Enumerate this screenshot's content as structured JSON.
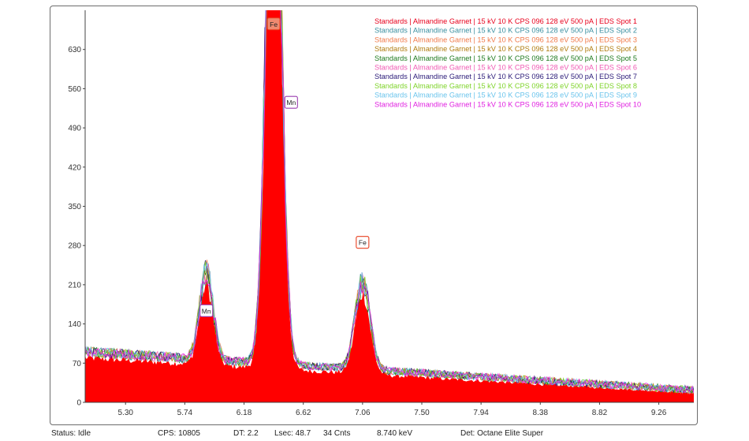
{
  "chart_data": {
    "type": "area",
    "yticks": [
      "0",
      "70",
      "140",
      "210",
      "280",
      "350",
      "420",
      "490",
      "560",
      "630"
    ],
    "ytick_values": [
      0,
      70,
      140,
      210,
      280,
      350,
      420,
      490,
      560,
      630
    ],
    "xticks": [
      "5.30",
      "5.74",
      "6.18",
      "6.62",
      "7.06",
      "7.50",
      "7.94",
      "8.38",
      "8.82",
      "9.26"
    ],
    "xtick_values": [
      5.3,
      5.74,
      6.18,
      6.62,
      7.06,
      7.5,
      7.94,
      8.38,
      8.82,
      9.26
    ],
    "xlim": [
      5.0,
      9.52
    ],
    "ylim": [
      0,
      700
    ],
    "grid": false,
    "legend_position": "top-right",
    "legend": [
      {
        "label": "Standards | Almandine Garnet | 15 kV 10 K CPS 096 128 eV 500 pA | EDS Spot 1",
        "color": "#e8001c"
      },
      {
        "label": "Standards | Almandine Garnet | 15 kV 10 K CPS 096 128 eV 500 pA | EDS Spot 2",
        "color": "#3a8fa0"
      },
      {
        "label": "Standards | Almandine Garnet | 15 kV 10 K CPS 096 128 eV 500 pA | EDS Spot 3",
        "color": "#f07a4a"
      },
      {
        "label": "Standards | Almandine Garnet | 15 kV 10 K CPS 096 128 eV 500 pA | EDS Spot 4",
        "color": "#b07d10"
      },
      {
        "label": "Standards | Almandine Garnet | 15 kV 10 K CPS 096 128 eV 500 pA | EDS Spot 5",
        "color": "#1e7a1e"
      },
      {
        "label": "Standards | Almandine Garnet | 15 kV 10 K CPS 096 128 eV 500 pA | EDS Spot 6",
        "color": "#f05ab4"
      },
      {
        "label": "Standards | Almandine Garnet | 15 kV 10 K CPS 096 128 eV 500 pA | EDS Spot 7",
        "color": "#2a1a78"
      },
      {
        "label": "Standards | Almandine Garnet | 15 kV 10 K CPS 096 128 eV 500 pA | EDS Spot 8",
        "color": "#7fd42a"
      },
      {
        "label": "Standards | Almandine Garnet | 15 kV 10 K CPS 096 128 eV 500 pA | EDS Spot 9",
        "color": "#6ac4ec"
      },
      {
        "label": "Standards | Almandine Garnet | 15 kV 10 K CPS 096 128 eV 500 pA | EDS Spot 10",
        "color": "#e020e0"
      }
    ],
    "fill_color": "#ff0000",
    "peaks": [
      {
        "element": "Mn",
        "energy": 5.9,
        "height": 155,
        "width": 0.05
      },
      {
        "element": "Fe",
        "energy": 6.4,
        "height": 1100,
        "width": 0.055
      },
      {
        "element": "Fe",
        "energy": 7.06,
        "height": 155,
        "width": 0.055
      }
    ],
    "background": {
      "start_energy": 5.0,
      "start_counts": 90,
      "end_energy": 9.52,
      "end_counts": 22
    },
    "peak_labels": [
      {
        "text": "Mn",
        "energy": 5.9,
        "counts": 163,
        "color": "#9b3fb0"
      },
      {
        "text": "Fe",
        "energy": 6.4,
        "counts": 675,
        "color": "#e84020",
        "filled": true
      },
      {
        "text": "Mn",
        "energy": 6.53,
        "counts": 535,
        "color": "#9b3fb0"
      },
      {
        "text": "Fe",
        "energy": 7.06,
        "counts": 285,
        "color": "#e84020"
      }
    ]
  },
  "status": {
    "status": "Status: Idle",
    "cps": "CPS: 10805",
    "dt": "DT: 2.2",
    "lsec": "Lsec: 48.7",
    "cnts": "34 Cnts",
    "kev": "8.740 keV",
    "det": "Det: Octane Elite Super"
  }
}
